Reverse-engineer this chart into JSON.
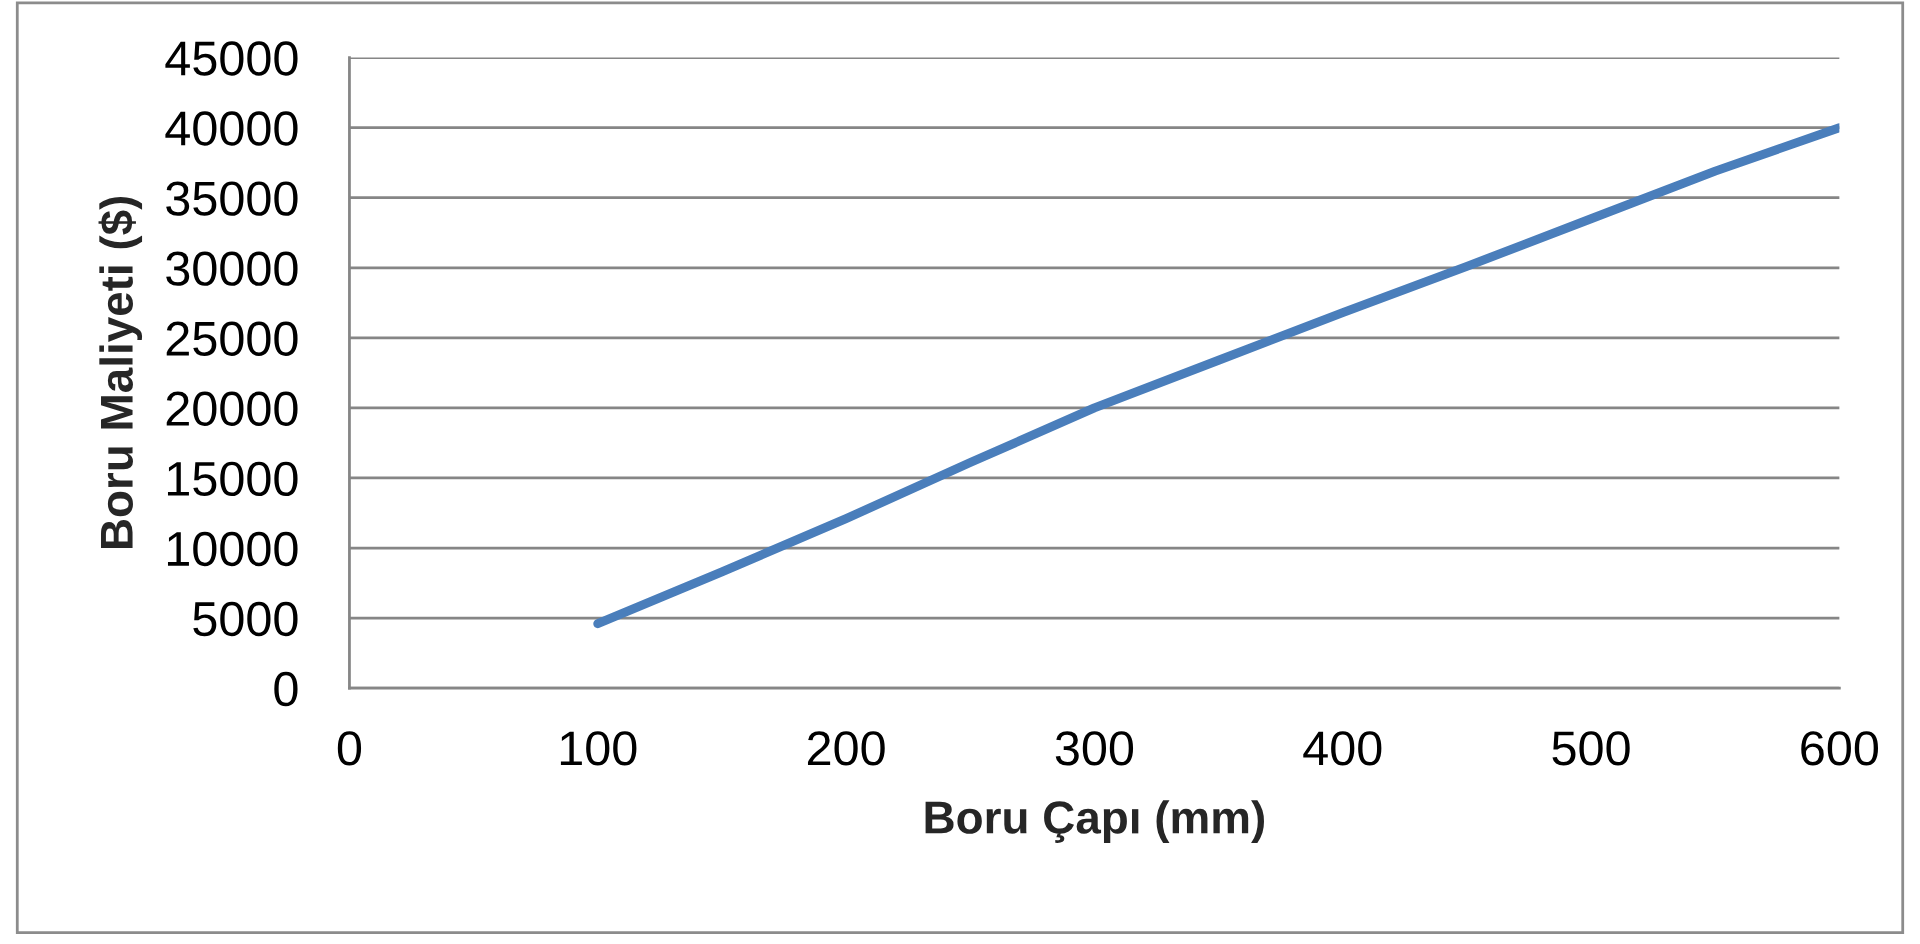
{
  "chart_data": {
    "type": "line",
    "xlabel": "Boru Çapı (mm)",
    "ylabel": "Boru Maliyeti ($)",
    "x": [
      100,
      150,
      200,
      250,
      300,
      350,
      400,
      450,
      500,
      550,
      600
    ],
    "series": [
      {
        "color": "#4a7ebb",
        "values": [
          4600,
          8300,
          12100,
          16100,
          20000,
          23400,
          26800,
          30100,
          33500,
          36900,
          40000
        ]
      }
    ],
    "xlim": [
      0,
      600
    ],
    "xticks": [
      0,
      100,
      200,
      300,
      400,
      500,
      600
    ],
    "ylim": [
      0,
      45000
    ],
    "yticks": [
      0,
      5000,
      10000,
      15000,
      20000,
      25000,
      30000,
      35000,
      40000,
      45000
    ],
    "grid": "y",
    "marker": "none",
    "line_style": "solid"
  }
}
